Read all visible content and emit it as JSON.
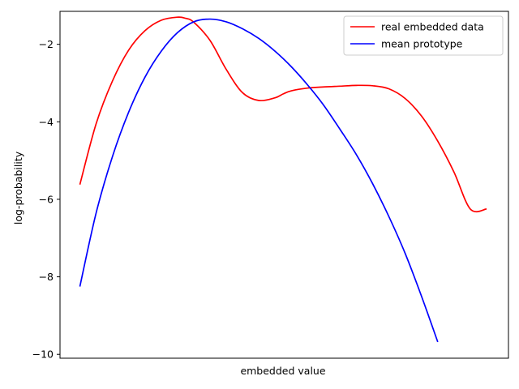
{
  "chart_data": {
    "type": "line",
    "title": "",
    "xlabel": "embedded value",
    "ylabel": "log-probability",
    "x_ticks_shown": false,
    "xlim": [
      0,
      1
    ],
    "ylim": [
      -10.1,
      -1.15
    ],
    "yticks": [
      -10,
      -8,
      -6,
      -4,
      -2
    ],
    "ytick_labels": [
      "−10",
      "−8",
      "−6",
      "−4",
      "−2"
    ],
    "legend_position": "top-right",
    "grid": false,
    "series": [
      {
        "name": "real embedded data",
        "color": "#ff0000",
        "x": [
          0.0,
          0.04,
          0.08,
          0.12,
          0.16,
          0.2,
          0.24,
          0.26,
          0.28,
          0.32,
          0.36,
          0.4,
          0.44,
          0.48,
          0.5,
          0.52,
          0.56,
          0.6,
          0.64,
          0.68,
          0.72,
          0.76,
          0.8,
          0.84,
          0.88,
          0.92,
          0.96,
          1.0
        ],
        "y": [
          -5.62,
          -4.05,
          -2.95,
          -2.15,
          -1.65,
          -1.38,
          -1.3,
          -1.33,
          -1.43,
          -1.9,
          -2.65,
          -3.25,
          -3.45,
          -3.38,
          -3.28,
          -3.2,
          -3.13,
          -3.1,
          -3.08,
          -3.06,
          -3.07,
          -3.15,
          -3.4,
          -3.85,
          -4.5,
          -5.3,
          -6.25,
          -6.25
        ]
      },
      {
        "name": "mean prototype",
        "color": "#0000ff",
        "x": [
          0.0,
          0.04,
          0.08,
          0.12,
          0.16,
          0.2,
          0.24,
          0.28,
          0.32,
          0.36,
          0.4,
          0.44,
          0.48,
          0.52,
          0.56,
          0.6,
          0.64,
          0.68,
          0.72,
          0.76,
          0.8,
          0.84,
          0.88,
          0.92,
          0.96,
          1.0
        ],
        "y": [
          -8.25,
          -6.35,
          -4.9,
          -3.75,
          -2.85,
          -2.18,
          -1.7,
          -1.42,
          -1.35,
          -1.42,
          -1.6,
          -1.85,
          -2.18,
          -2.58,
          -3.05,
          -3.58,
          -4.2,
          -4.85,
          -5.6,
          -6.45,
          -7.4,
          -8.5,
          -9.68,
          -9.68,
          -9.68,
          -9.68
        ]
      }
    ]
  }
}
